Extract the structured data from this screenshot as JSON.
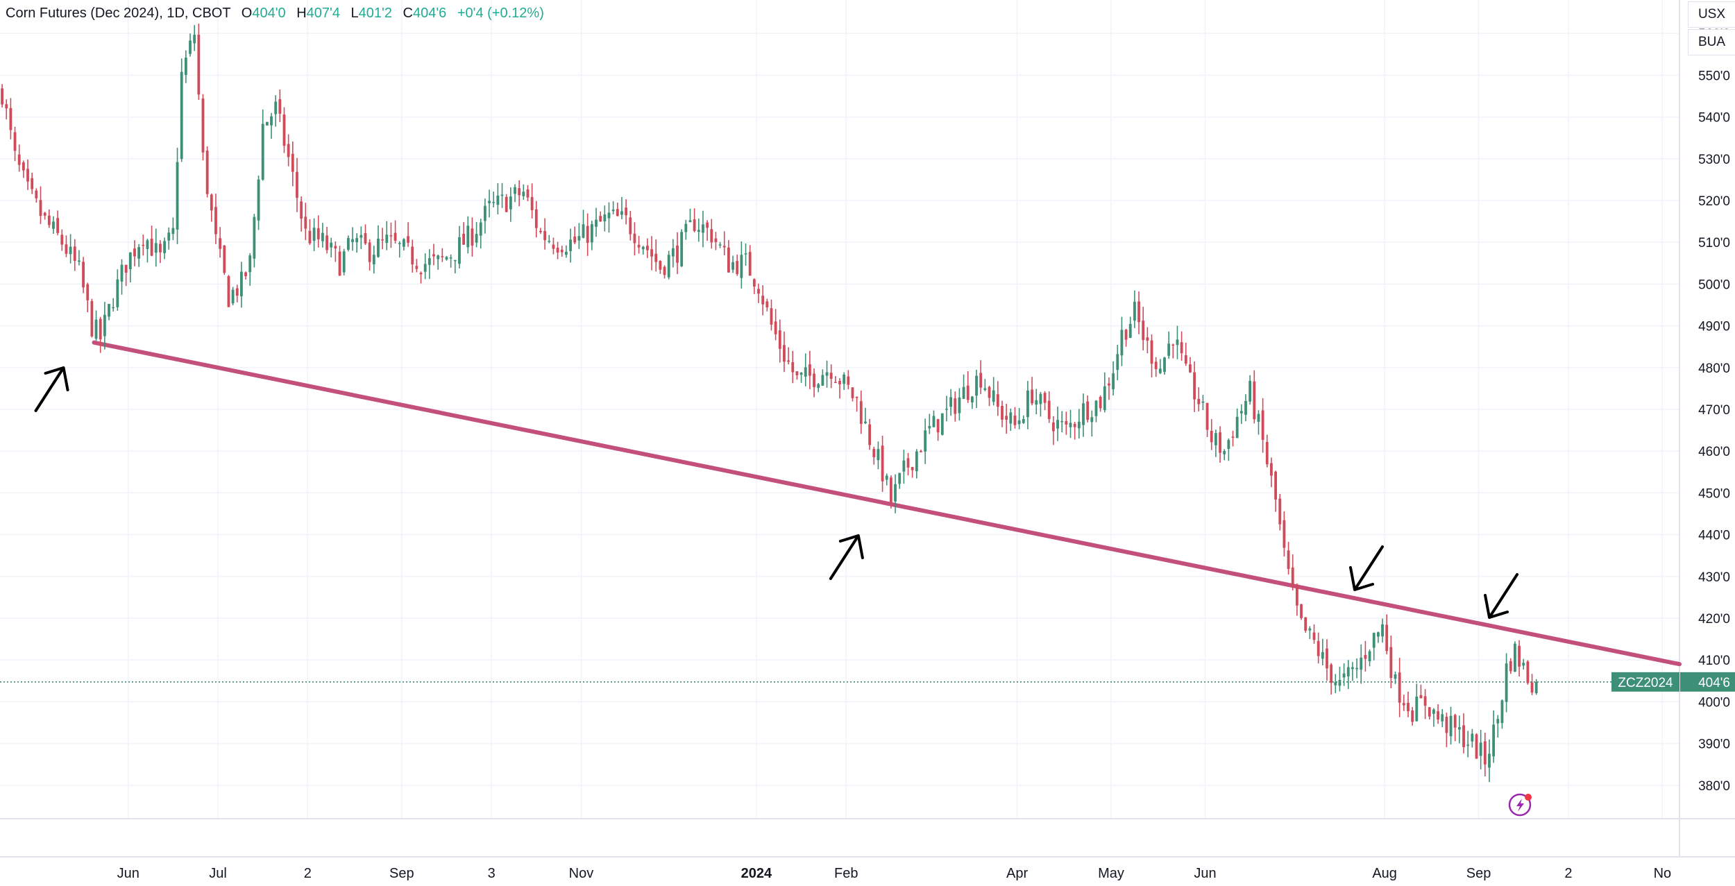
{
  "header": {
    "symbol_title": "Corn Futures (Dec 2024), 1D, CBOT",
    "open_label": "O",
    "open_value": "404'0",
    "high_label": "H",
    "high_value": "407'4",
    "low_label": "L",
    "low_value": "401'2",
    "close_label": "C",
    "close_value": "404'6",
    "change": "+0'4 (+0.12%)"
  },
  "right_buttons": {
    "currency": "USX",
    "unit": "BUA"
  },
  "price_tag": {
    "symbol": "ZCZ2024",
    "value": "404'6"
  },
  "colors": {
    "up": "#22ab94",
    "down": "#f23645",
    "trendline": "#c2507a",
    "up_candle": "#3d8f76",
    "down_candle": "#d04b5a"
  },
  "chart_data": {
    "type": "candlestick",
    "y_axis": {
      "min": 372,
      "max": 568,
      "unit": "cents per bushel",
      "ticks": [
        380,
        390,
        400,
        410,
        420,
        430,
        440,
        450,
        460,
        470,
        480,
        490,
        500,
        510,
        520,
        530,
        540,
        550,
        560
      ],
      "tick_labels": [
        "380'0",
        "390'0",
        "400'0",
        "410'0",
        "420'0",
        "430'0",
        "440'0",
        "450'0",
        "460'0",
        "470'0",
        "480'0",
        "490'0",
        "500'0",
        "510'0",
        "520'0",
        "530'0",
        "540'0",
        "550'0",
        "560'0"
      ]
    },
    "x_axis": {
      "labels": [
        {
          "text": "Jun",
          "bar": 30,
          "bold": false
        },
        {
          "text": "Jul",
          "bar": 51,
          "bold": false
        },
        {
          "text": "2",
          "bar": 72,
          "bold": false
        },
        {
          "text": "Sep",
          "bar": 94,
          "bold": false
        },
        {
          "text": "3",
          "bar": 115,
          "bold": false
        },
        {
          "text": "Nov",
          "bar": 136,
          "bold": false
        },
        {
          "text": "2024",
          "bar": 177,
          "bold": true
        },
        {
          "text": "Feb",
          "bar": 198,
          "bold": false
        },
        {
          "text": "Apr",
          "bar": 238,
          "bold": false
        },
        {
          "text": "May",
          "bar": 260,
          "bold": false
        },
        {
          "text": "Jun",
          "bar": 282,
          "bold": false
        },
        {
          "text": "Aug",
          "bar": 324,
          "bold": false
        },
        {
          "text": "Sep",
          "bar": 346,
          "bold": false
        },
        {
          "text": "2",
          "bar": 367,
          "bold": false
        },
        {
          "text": "No",
          "bar": 389,
          "bold": false
        }
      ],
      "total_bars": 393
    },
    "approximate_close_path": [
      [
        0,
        546
      ],
      [
        3,
        530
      ],
      [
        6,
        522
      ],
      [
        10,
        515
      ],
      [
        14,
        510
      ],
      [
        18,
        503
      ],
      [
        21,
        490
      ],
      [
        23,
        487
      ],
      [
        26,
        497
      ],
      [
        29,
        505
      ],
      [
        33,
        512
      ],
      [
        37,
        506
      ],
      [
        40,
        512
      ],
      [
        42,
        550
      ],
      [
        45,
        560
      ],
      [
        47,
        530
      ],
      [
        50,
        510
      ],
      [
        53,
        497
      ],
      [
        56,
        500
      ],
      [
        58,
        505
      ],
      [
        61,
        538
      ],
      [
        64,
        542
      ],
      [
        67,
        530
      ],
      [
        71,
        512
      ],
      [
        75,
        510
      ],
      [
        79,
        505
      ],
      [
        82,
        510
      ],
      [
        86,
        508
      ],
      [
        90,
        510
      ],
      [
        94,
        508
      ],
      [
        98,
        505
      ],
      [
        102,
        505
      ],
      [
        106,
        508
      ],
      [
        110,
        512
      ],
      [
        114,
        518
      ],
      [
        118,
        520
      ],
      [
        122,
        522
      ],
      [
        126,
        512
      ],
      [
        130,
        510
      ],
      [
        134,
        510
      ],
      [
        138,
        513
      ],
      [
        142,
        516
      ],
      [
        146,
        515
      ],
      [
        150,
        510
      ],
      [
        154,
        504
      ],
      [
        158,
        508
      ],
      [
        162,
        515
      ],
      [
        166,
        512
      ],
      [
        170,
        505
      ],
      [
        174,
        505
      ],
      [
        177,
        500
      ],
      [
        180,
        490
      ],
      [
        183,
        483
      ],
      [
        186,
        477
      ],
      [
        190,
        478
      ],
      [
        194,
        480
      ],
      [
        197,
        476
      ],
      [
        200,
        472
      ],
      [
        203,
        463
      ],
      [
        206,
        455
      ],
      [
        208,
        448
      ],
      [
        211,
        455
      ],
      [
        214,
        460
      ],
      [
        217,
        465
      ],
      [
        221,
        469
      ],
      [
        225,
        474
      ],
      [
        229,
        478
      ],
      [
        233,
        470
      ],
      [
        237,
        466
      ],
      [
        241,
        474
      ],
      [
        245,
        468
      ],
      [
        249,
        465
      ],
      [
        253,
        470
      ],
      [
        257,
        472
      ],
      [
        260,
        480
      ],
      [
        262,
        488
      ],
      [
        265,
        493
      ],
      [
        268,
        485
      ],
      [
        271,
        480
      ],
      [
        274,
        488
      ],
      [
        277,
        478
      ],
      [
        280,
        472
      ],
      [
        283,
        463
      ],
      [
        286,
        460
      ],
      [
        289,
        468
      ],
      [
        292,
        474
      ],
      [
        295,
        462
      ],
      [
        298,
        448
      ],
      [
        300,
        435
      ],
      [
        302,
        425
      ],
      [
        304,
        418
      ],
      [
        307,
        414
      ],
      [
        310,
        408
      ],
      [
        313,
        404
      ],
      [
        317,
        408
      ],
      [
        320,
        414
      ],
      [
        323,
        418
      ],
      [
        326,
        404
      ],
      [
        330,
        398
      ],
      [
        333,
        400
      ],
      [
        336,
        396
      ],
      [
        340,
        393
      ],
      [
        344,
        390
      ],
      [
        347,
        386
      ],
      [
        350,
        396
      ],
      [
        352,
        408
      ],
      [
        354,
        412
      ],
      [
        357,
        406
      ],
      [
        359,
        404
      ]
    ],
    "last_close": 404.75,
    "trendline": {
      "points": [
        [
          22,
          486
        ],
        [
          393,
          409
        ]
      ]
    },
    "arrows": [
      {
        "direction": "up-right",
        "at_bar": 16
      },
      {
        "direction": "up-right",
        "at_bar": 202
      },
      {
        "direction": "down-left",
        "at_bar": 317
      },
      {
        "direction": "down-left",
        "at_bar": 349
      }
    ]
  }
}
